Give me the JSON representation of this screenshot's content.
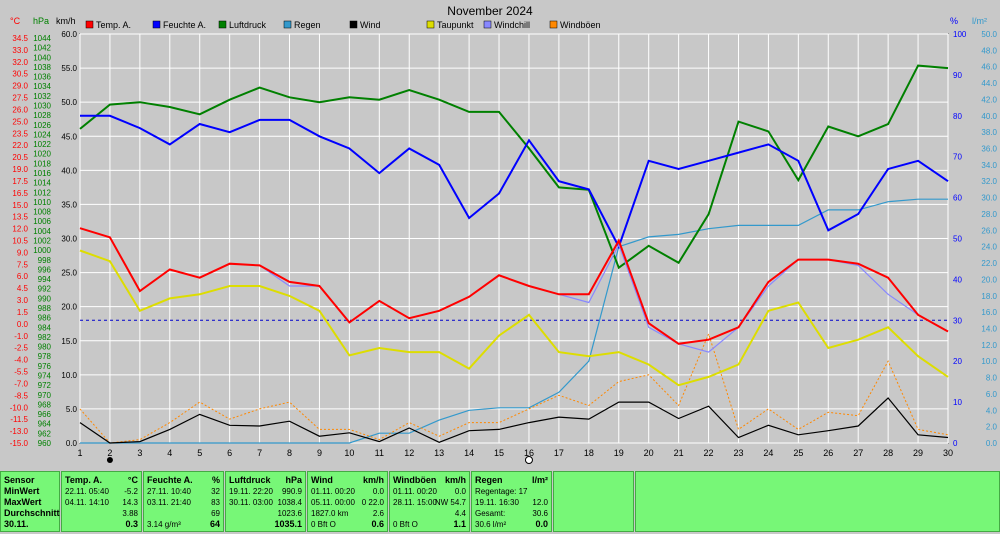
{
  "chart_data": {
    "type": "line",
    "title": "November 2024",
    "x": [
      1,
      2,
      3,
      4,
      5,
      6,
      7,
      8,
      9,
      10,
      11,
      12,
      13,
      14,
      15,
      16,
      17,
      18,
      19,
      20,
      21,
      22,
      23,
      24,
      25,
      26,
      27,
      28,
      29,
      30
    ],
    "left_axis_units": [
      "°C",
      "hPa",
      "km/h"
    ],
    "right_axis_units": [
      "%",
      "l/m²"
    ],
    "axes": {
      "kmh": {
        "min": 0,
        "max": 60,
        "ticks": [
          "0.0",
          "5.0",
          "10.0",
          "15.0",
          "20.0",
          "25.0",
          "30.0",
          "35.0",
          "40.0",
          "45.0",
          "50.0",
          "55.0",
          "60.0"
        ]
      },
      "temp": {
        "min": -15,
        "max": 34.5
      },
      "hpa": {
        "min": 960,
        "max": 1044
      },
      "pct": {
        "min": 0,
        "max": 100
      },
      "lm2": {
        "min": 0,
        "max": 50
      }
    },
    "temp_ticks": [
      "34.5",
      "33.0",
      "31.5",
      "30.0",
      "29.0",
      "27.5",
      "26.0",
      "24.5",
      "23.0",
      "21.5",
      "20.0",
      "18.5",
      "17.0",
      "15.5",
      "14.0",
      "12.5",
      "11.0",
      "9.5",
      "8.0",
      "6.5",
      "5.0",
      "3.5",
      "2.0",
      "0.5",
      "-0.5",
      "-2.0",
      "-3.5",
      "-5.0",
      "-6.5",
      "-8.0",
      "-9.5",
      "-11.0",
      "-12.5",
      "-14.0",
      "-15.0"
    ],
    "temp_tick_labels": [
      "34.5",
      "33.0",
      "32.0",
      "30.5",
      "29.0",
      "27.5",
      "26.0",
      "25.0",
      "23.5",
      "22.0",
      "20.5",
      "19.0",
      "17.5",
      "16.5",
      "15.0",
      "13.5",
      "12.0",
      "10.5",
      "9.0",
      "7.5",
      "6.0",
      "4.5",
      "3.0",
      "1.5",
      "0.0",
      "-1.0",
      "-2.5",
      "-4.0",
      "-5.5",
      "-7.0",
      "-8.5",
      "-10.0",
      "-11.5",
      "-13.0",
      "-15.0"
    ],
    "hpa_ticks": [
      "1044",
      "1042",
      "1040",
      "1038",
      "1036",
      "1034",
      "1032",
      "1030",
      "1028",
      "1026",
      "1024",
      "1022",
      "1020",
      "1018",
      "1016",
      "1014",
      "1012",
      "1010",
      "1008",
      "1006",
      "1004",
      "1002",
      "1000",
      "998",
      "996",
      "994",
      "992",
      "990",
      "988",
      "986",
      "984",
      "982",
      "980",
      "978",
      "976",
      "974",
      "972",
      "970",
      "968",
      "966",
      "964",
      "962",
      "960"
    ],
    "pct_ticks": [
      "0",
      "10",
      "20",
      "30",
      "40",
      "50",
      "60",
      "70",
      "80",
      "90",
      "100"
    ],
    "lm2_ticks": [
      "0.0",
      "2.0",
      "4.0",
      "6.0",
      "8.0",
      "10.0",
      "12.0",
      "14.0",
      "16.0",
      "18.0",
      "20.0",
      "22.0",
      "24.0",
      "26.0",
      "28.0",
      "30.0",
      "32.0",
      "34.0",
      "36.0",
      "38.0",
      "40.0",
      "42.0",
      "44.0",
      "46.0",
      "48.0",
      "50.0"
    ],
    "reference_line": {
      "axis": "pct",
      "value": 30,
      "style": "dashed",
      "color": "#0000cc"
    },
    "series": [
      {
        "name": "Temp. A.",
        "color": "#ff0000",
        "axis": "temp",
        "values": [
          11.0,
          9.9,
          3.4,
          6.0,
          5.0,
          6.7,
          6.5,
          4.5,
          4.0,
          -0.4,
          2.2,
          0.1,
          1.0,
          2.7,
          5.3,
          4.0,
          3.0,
          3.0,
          9.5,
          -0.5,
          -3.0,
          -2.5,
          -1.0,
          4.5,
          7.2,
          7.2,
          6.7,
          5.0,
          0.5,
          -1.5
        ]
      },
      {
        "name": "Feuchte A.",
        "color": "#0000ff",
        "axis": "pct",
        "values": [
          80,
          80,
          77,
          73,
          78,
          76,
          79,
          79,
          75,
          72,
          66,
          72,
          68,
          55,
          61,
          74,
          64,
          62,
          48,
          69,
          67,
          69,
          71,
          73,
          69,
          52,
          56,
          67,
          69,
          64
        ]
      },
      {
        "name": "Luftdruck",
        "color": "#008000",
        "axis": "hpa",
        "values": [
          1024.5,
          1029.5,
          1030,
          1029,
          1027.5,
          1030.5,
          1033,
          1031,
          1030,
          1031,
          1030.5,
          1032.5,
          1030.5,
          1028,
          1028,
          1020.5,
          1012.5,
          1012,
          996,
          1000.5,
          997,
          1007,
          1026,
          1024,
          1014,
          1025,
          1023,
          1025.5,
          1037.5,
          1037
        ]
      },
      {
        "name": "Regen",
        "color": "#3399cc",
        "axis": "lm2",
        "values": [
          0,
          0,
          0,
          0,
          0,
          0,
          0,
          0,
          0,
          0,
          1.2,
          1.2,
          2.8,
          4.0,
          4.3,
          4.3,
          6.2,
          10.0,
          24.0,
          25.2,
          25.5,
          26.2,
          26.6,
          26.6,
          26.6,
          28.5,
          28.5,
          29.5,
          29.8,
          29.8
        ]
      },
      {
        "name": "Wind",
        "color": "#000000",
        "axis": "kmh",
        "values": [
          3.0,
          0.0,
          0.2,
          2.0,
          4.2,
          2.6,
          2.5,
          3.2,
          1.0,
          1.5,
          0.2,
          2.2,
          0.1,
          1.8,
          2.0,
          3.0,
          3.8,
          3.5,
          6.0,
          6.0,
          3.6,
          5.4,
          0.8,
          2.6,
          1.2,
          1.8,
          2.5,
          6.6,
          1.2,
          0.8
        ]
      },
      {
        "name": "Taupunkt",
        "color": "#dddd00",
        "axis": "temp",
        "values": [
          8.3,
          7.0,
          1.0,
          2.5,
          3.0,
          4.0,
          4.0,
          2.8,
          1.0,
          -4.4,
          -3.5,
          -4.0,
          -4.0,
          -6.0,
          -2.0,
          0.5,
          -4.0,
          -4.5,
          -4.0,
          -5.5,
          -8.0,
          -7.0,
          -5.5,
          1.0,
          2.0,
          -3.5,
          -2.5,
          -1.0,
          -4.5,
          -7.0
        ]
      },
      {
        "name": "Windchill",
        "color": "#8888ff",
        "axis": "temp",
        "values": [
          11.0,
          9.9,
          3.4,
          6.0,
          5.0,
          6.7,
          6.5,
          4.0,
          4.0,
          -0.4,
          2.2,
          0.1,
          1.0,
          2.7,
          5.3,
          4.0,
          3.0,
          2.0,
          9.0,
          -1.0,
          -3.0,
          -4.0,
          -1.0,
          4.0,
          7.2,
          7.2,
          6.5,
          3.0,
          0.5,
          -1.5
        ]
      },
      {
        "name": "Windböen",
        "color": "#ff8800",
        "axis": "kmh",
        "values": [
          5.0,
          0.0,
          0.5,
          3.0,
          6.0,
          3.5,
          5.0,
          6.0,
          2.0,
          2.0,
          0.5,
          3.0,
          1.0,
          3.0,
          3.0,
          5.0,
          7.0,
          5.5,
          9.0,
          10.0,
          5.5,
          16.0,
          2.0,
          5.0,
          2.0,
          4.5,
          4.0,
          12.0,
          2.0,
          1.2
        ]
      }
    ],
    "markers": [
      {
        "type": "full-moon-circle",
        "x": 16
      },
      {
        "type": "new-moon-dot",
        "x": 2
      }
    ],
    "grid": true
  },
  "stats": {
    "sensor": {
      "header": "Sensor",
      "min": "MinWert",
      "max": "MaxWert",
      "avg": "Durchschnitt",
      "date": "30.11."
    },
    "temp": {
      "header": "Temp. A.",
      "unit": "°C",
      "min_time": "22.11.  05:40",
      "min_val": "-5.2",
      "max_time": "04.11.  14:10",
      "max_val": "14.3",
      "avg": "3.88",
      "current": "0.3"
    },
    "feuchte": {
      "header": "Feuchte A.",
      "unit": "%",
      "min_time": "27.11.  10:40",
      "min_val": "32",
      "max_time": "03.11.  21:40",
      "max_val": "83",
      "avg": "69",
      "abs": "3.14 g/m³",
      "current": "64"
    },
    "luftdruck": {
      "header": "Luftdruck",
      "unit": "hPa",
      "min_time": "19.11.  22:20",
      "min_val": "990.9",
      "max_time": "30.11.  03:00",
      "max_val": "1038.4",
      "avg": "1023.6",
      "current": "1035.1"
    },
    "wind": {
      "header": "Wind",
      "unit": "km/h",
      "min_time": "01.11.  00:20",
      "min_val": "0.0",
      "max_time": "05.11.  00:00",
      "max_val": "0 22.0",
      "avg_left": "1827.0 km",
      "avg": "2.6",
      "cur_left": "0 Bft O",
      "current": "0.6"
    },
    "windboeen": {
      "header": "Windböen",
      "unit": "km/h",
      "min_time": "01.11.  00:20",
      "min_val": "0.0",
      "max_time": "28.11.  15:00",
      "max_val": "NW 54.7",
      "avg": "4.4",
      "cur_left": "0 Bft O",
      "current": "1.1"
    },
    "regen": {
      "header": "Regen",
      "unit": "l/m²",
      "row1": "Regentage: 17",
      "row2_left": "19.11.  16:30",
      "row2_val": "12.0",
      "row3_left": "Gesamt:",
      "row3_val": "30.6",
      "row4_left": "30.6 l/m²",
      "current": "0.0"
    }
  }
}
